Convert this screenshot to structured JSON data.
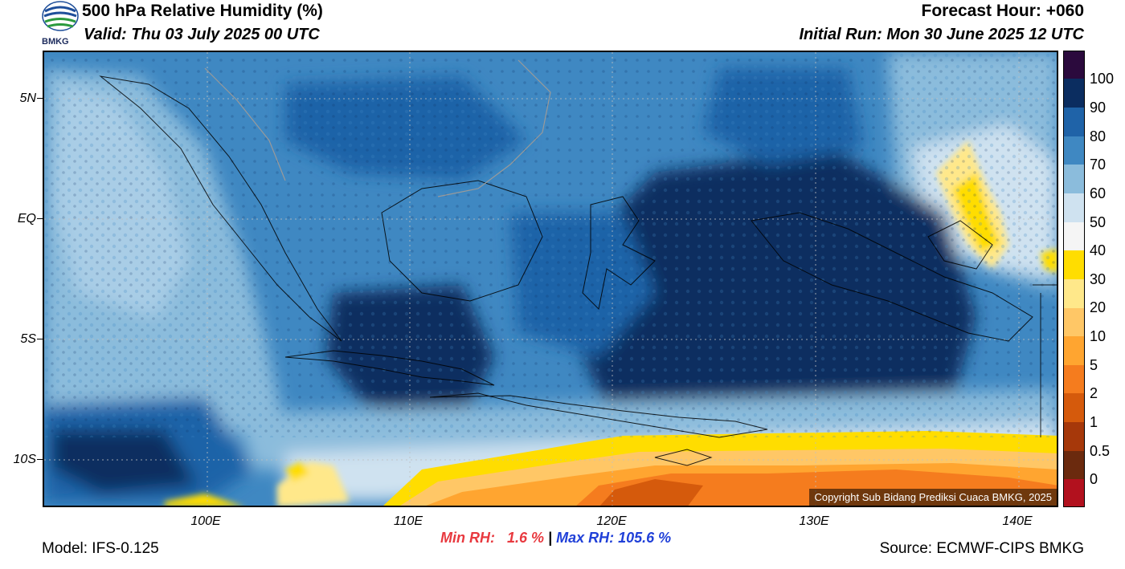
{
  "header": {
    "title": "500 hPa Relative Humidity (%)",
    "valid": "Valid: Thu 03 July 2025 00 UTC",
    "forecast_hour": "Forecast Hour: +060",
    "initial_run": "Initial Run: Mon 30 June 2025 12 UTC"
  },
  "logo": {
    "text": "BMKG"
  },
  "axes": {
    "lat_labels": [
      "5N",
      "EQ",
      "5S",
      "10S"
    ],
    "lon_labels": [
      "100E",
      "110E",
      "120E",
      "130E",
      "140E"
    ]
  },
  "colorbar": {
    "labels": [
      "100",
      "90",
      "80",
      "70",
      "60",
      "50",
      "40",
      "30",
      "20",
      "10",
      "5",
      "2",
      "1",
      "0.5",
      "0"
    ],
    "colors": [
      "#2b0a3d",
      "#0b2d60",
      "#1f63a8",
      "#3f88c2",
      "#8bbcdc",
      "#cfe2f0",
      "#f5f5f5",
      "#ffdd00",
      "#ffe88a",
      "#ffc766",
      "#ffa530",
      "#f57c1e",
      "#d55a0c",
      "#a6380a",
      "#6b2a0e",
      "#b2111e",
      "#e83a3a"
    ]
  },
  "stats": {
    "min_rh": "Min RH:   1.6 %",
    "separator": "|",
    "max_rh": "Max RH: 105.6 %"
  },
  "footer": {
    "model": "Model: IFS-0.125",
    "source": "Source: ECMWF-CIPS BMKG",
    "copyright": "Copyright Sub Bidang Prediksi Cuaca BMKG, 2025"
  }
}
